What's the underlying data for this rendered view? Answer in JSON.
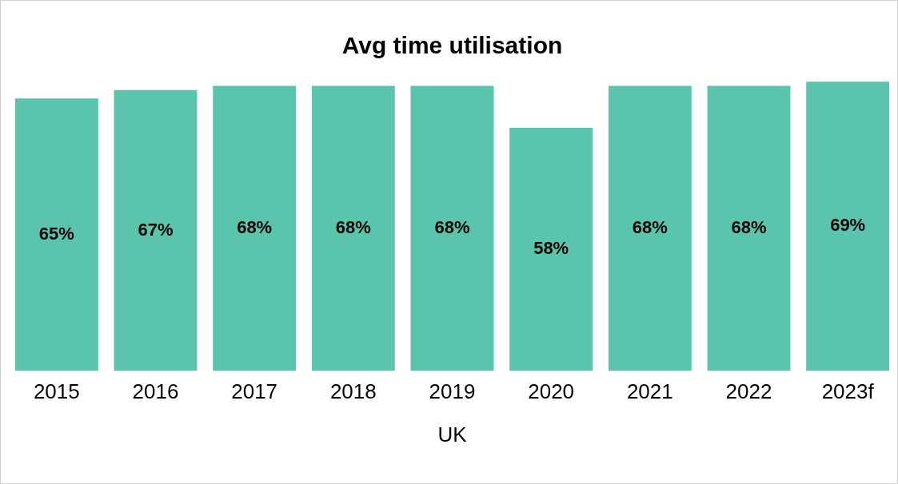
{
  "chart_data": {
    "type": "bar",
    "title": "Avg time utilisation",
    "xlabel": "UK",
    "categories": [
      "2015",
      "2016",
      "2017",
      "2018",
      "2019",
      "2020",
      "2021",
      "2022",
      "2023f"
    ],
    "values": [
      65,
      67,
      68,
      68,
      68,
      58,
      68,
      68,
      69
    ],
    "value_labels": [
      "65%",
      "67%",
      "68%",
      "68%",
      "68%",
      "58%",
      "68%",
      "68%",
      "69%"
    ],
    "color": "#5bc4ad",
    "grid": false,
    "legend": false
  }
}
